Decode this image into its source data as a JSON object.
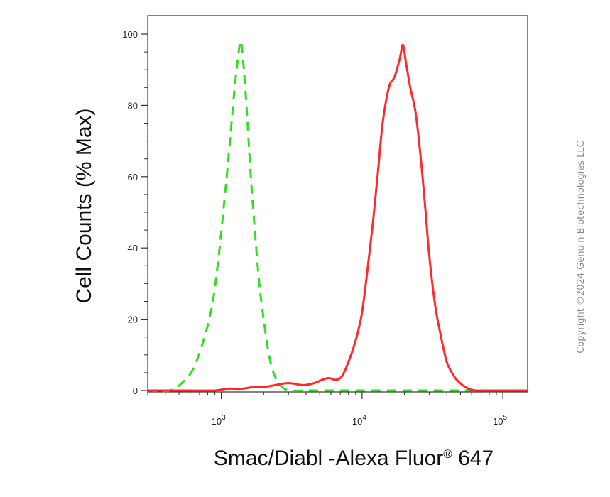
{
  "chart_data": {
    "type": "line",
    "title": "",
    "xlabel": "Smac/Diabl -Alexa Fluor",
    "xlabel_superscript": "®",
    "xlabel_suffix": " 647",
    "ylabel": "Cell Counts (% Max)",
    "x_scale": "log",
    "xlim": [
      300,
      150000
    ],
    "ylim": [
      0,
      100
    ],
    "x_ticks": [
      {
        "value": 1000,
        "base": "10",
        "exp": "3"
      },
      {
        "value": 10000,
        "base": "10",
        "exp": "4"
      },
      {
        "value": 100000,
        "base": "10",
        "exp": "5"
      }
    ],
    "y_ticks": [
      0,
      20,
      40,
      60,
      80,
      100
    ],
    "grid": false,
    "legend": "none",
    "series": [
      {
        "color": "#33dd22",
        "style": "dashed",
        "x": [
          300,
          430,
          520,
          630,
          760,
          870,
          960,
          1050,
          1140,
          1230,
          1310,
          1370,
          1410,
          1460,
          1530,
          1620,
          1730,
          1860,
          2000,
          2180,
          2400,
          2700,
          3100,
          4000,
          6000,
          10000,
          20000,
          40000,
          80000,
          150000
        ],
        "y": [
          0,
          0,
          2,
          6,
          15,
          25,
          38,
          53,
          68,
          83,
          93,
          98,
          95,
          88,
          76,
          60,
          45,
          30,
          20,
          10,
          4,
          1,
          0,
          0,
          0,
          0,
          0,
          0,
          0,
          0
        ]
      },
      {
        "color": "#ff2a2a",
        "style": "solid",
        "x": [
          300,
          600,
          900,
          1100,
          1400,
          1700,
          2000,
          2400,
          2800,
          3200,
          3800,
          4500,
          5200,
          5800,
          6500,
          7200,
          8000,
          9000,
          10000,
          11000,
          12000,
          13000,
          14000,
          15500,
          17000,
          18500,
          19500,
          20500,
          22000,
          24000,
          26000,
          28000,
          30000,
          33000,
          36000,
          40000,
          45000,
          50000,
          57000,
          65000,
          75000,
          100000,
          150000
        ],
        "y": [
          0,
          0,
          0,
          0.5,
          0.5,
          1,
          1,
          1.5,
          2,
          2,
          1.5,
          2,
          3,
          3.5,
          3,
          4,
          8,
          14,
          22,
          35,
          48,
          62,
          75,
          85,
          88,
          93,
          97,
          92,
          85,
          78,
          66,
          52,
          38,
          24,
          16,
          8,
          4,
          2,
          0.5,
          0,
          0,
          0,
          0
        ]
      }
    ]
  },
  "copyright": "Copyright ©2024 Genuin Biotechnologies LLC"
}
